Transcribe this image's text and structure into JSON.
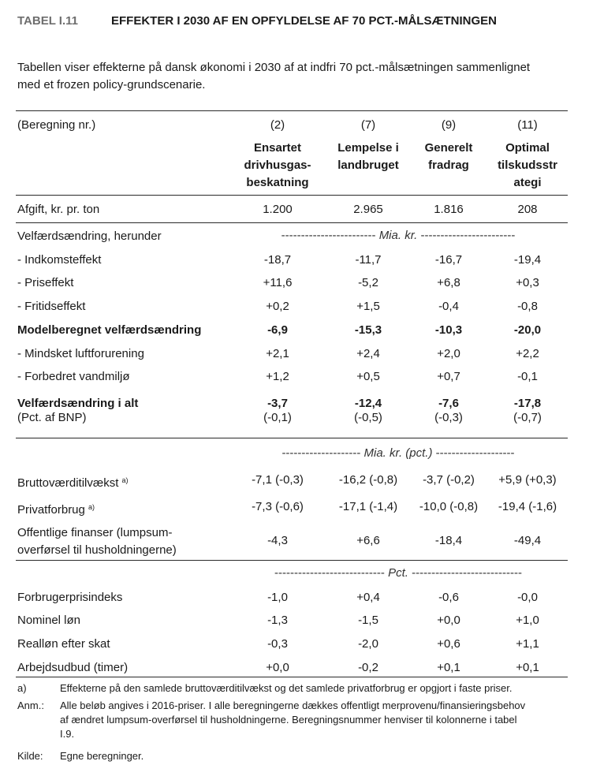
{
  "header": {
    "table_number": "TABEL I.11",
    "title": "EFFEKTER I 2030 AF EN OPFYLDELSE AF 70 PCT.-MÅLSÆTNINGEN"
  },
  "intro": {
    "line1": "Tabellen viser effekterne på dansk økonomi i 2030 af at indfri 70 pct.-målsætningen sammenlignet",
    "line2": "med et frozen policy-grundscenarie."
  },
  "columns": {
    "label": "(Beregning nr.)",
    "numbers": [
      "(2)",
      "(7)",
      "(9)",
      "(11)"
    ],
    "names": [
      [
        "Ensartet",
        "drivhusgas-",
        "beskatning"
      ],
      [
        "Lempelse i",
        "landbruget"
      ],
      [
        "Generelt",
        "fradrag"
      ],
      [
        "Optimal",
        "tilskudsstr",
        "ategi"
      ]
    ]
  },
  "afgift": {
    "label": "Afgift, kr. pr. ton",
    "values": [
      "1.200",
      "2.965",
      "1.816",
      "208"
    ]
  },
  "section1": {
    "label": "Velfærdsændring, herunder",
    "unit_dashes_left": "------------------------",
    "unit": "Mia. kr.",
    "unit_dashes_right": "------------------------",
    "rows": [
      {
        "label": "- Indkomsteffekt",
        "values": [
          "-18,7",
          "-11,7",
          "-16,7",
          "-19,4"
        ]
      },
      {
        "label": "- Priseffekt",
        "values": [
          "+11,6",
          "-5,2",
          "+6,8",
          "+0,3"
        ]
      },
      {
        "label": "- Fritidseffekt",
        "values": [
          "+0,2",
          "+1,5",
          "-0,4",
          "-0,8"
        ]
      },
      {
        "label": "Modelberegnet velfærdsændring",
        "values": [
          "-6,9",
          "-15,3",
          "-10,3",
          "-20,0"
        ],
        "bold": true
      },
      {
        "label": "- Mindsket luftforurening",
        "values": [
          "+2,1",
          "+2,4",
          "+2,0",
          "+2,2"
        ]
      },
      {
        "label": "- Forbedret vandmiljø",
        "values": [
          "+1,2",
          "+0,5",
          "+0,7",
          "-0,1"
        ]
      }
    ],
    "total": {
      "label": "Velfærdsændring i alt",
      "values": [
        "-3,7",
        "-12,4",
        "-7,6",
        "-17,8"
      ]
    },
    "pct": {
      "label": "(Pct. af BNP)",
      "values": [
        "(-0,1)",
        "(-0,5)",
        "(-0,3)",
        "(-0,7)"
      ]
    }
  },
  "section2": {
    "unit_dashes_left": "--------------------",
    "unit": "Mia. kr. (pct.)",
    "unit_dashes_right": "--------------------",
    "rows": [
      {
        "label": "Bruttoværditilvækst",
        "sup": "a)",
        "values": [
          "-7,1 (-0,3)",
          "-16,2 (-0,8)",
          "-3,7 (-0,2)",
          "+5,9 (+0,3)"
        ]
      },
      {
        "label": "Privatforbrug",
        "sup": "a)",
        "values": [
          "-7,3 (-0,6)",
          "-17,1 (-1,4)",
          "-10,0 (-0,8)",
          "-19,4 (-1,6)"
        ]
      }
    ],
    "offentlige": {
      "label1": "Offentlige finanser (lumpsum-",
      "label2": "overførsel til husholdningerne)",
      "values": [
        "-4,3",
        "+6,6",
        "-18,4",
        "-49,4"
      ]
    }
  },
  "section3": {
    "unit_dashes_left": "----------------------------",
    "unit": "Pct.",
    "unit_dashes_right": "----------------------------",
    "rows": [
      {
        "label": "Forbrugerprisindeks",
        "values": [
          "-1,0",
          "+0,4",
          "-0,6",
          "-0,0"
        ]
      },
      {
        "label": "Nominel løn",
        "values": [
          "-1,3",
          "-1,5",
          "+0,0",
          "+1,0"
        ]
      },
      {
        "label": "Realløn efter skat",
        "values": [
          "-0,3",
          "-2,0",
          "+0,6",
          "+1,1"
        ]
      },
      {
        "label": "Arbejdsudbud (timer)",
        "values": [
          "+0,0",
          "-0,2",
          "+0,1",
          "+0,1"
        ]
      }
    ]
  },
  "footnotes": {
    "a_key": "a)",
    "a_text": "Effekterne på den samlede bruttoværditilvækst og det samlede privatforbrug er opgjort i faste priser.",
    "anm_key": "Anm.:",
    "anm_line1": "Alle beløb angives i 2016-priser. I alle beregningerne dækkes offentligt merprovenu/finansieringsbehov",
    "anm_line2": "af ændret lumpsum-overførsel til husholdningerne. Beregningsnummer henviser til kolonnerne i tabel",
    "anm_line3": "I.9.",
    "kilde_key": "Kilde:",
    "kilde_text": "Egne beregninger."
  }
}
